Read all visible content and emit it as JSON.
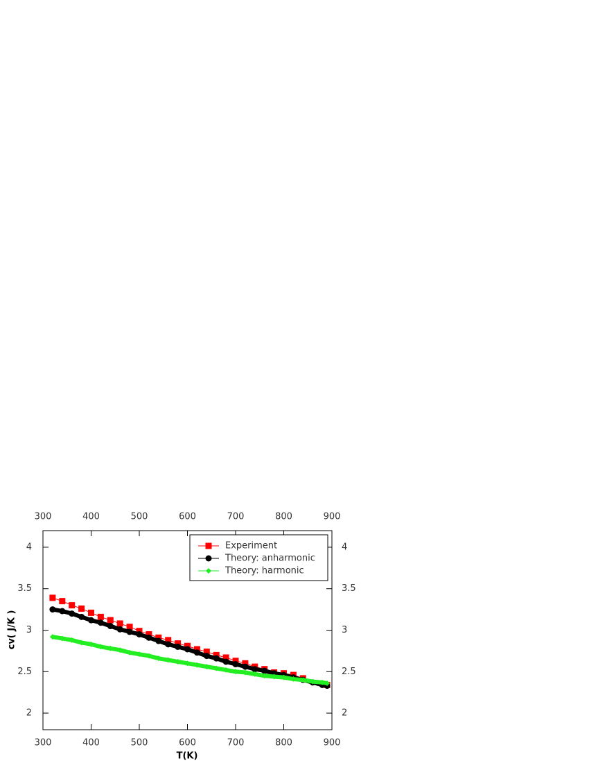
{
  "chart_data": {
    "type": "line",
    "xlabel": "T(K)",
    "ylabel": "cv( J/K )",
    "xlim": [
      300,
      900
    ],
    "xticks": [
      300,
      400,
      500,
      600,
      700,
      800,
      900
    ],
    "ylim": [
      1.8,
      4.2
    ],
    "yticks": [
      2,
      2.5,
      3,
      3.5,
      4
    ],
    "legend": "upper right",
    "series": [
      {
        "name": "Experiment",
        "color": "#ff0000",
        "marker": "square",
        "x": [
          320,
          340,
          360,
          380,
          400,
          420,
          440,
          460,
          480,
          500,
          520,
          540,
          560,
          580,
          600,
          620,
          640,
          660,
          680,
          700,
          720,
          740,
          760,
          780,
          800,
          820,
          840,
          890
        ],
        "values": [
          3.39,
          3.35,
          3.3,
          3.26,
          3.21,
          3.16,
          3.12,
          3.08,
          3.04,
          2.99,
          2.95,
          2.91,
          2.88,
          2.84,
          2.81,
          2.77,
          2.74,
          2.7,
          2.67,
          2.63,
          2.6,
          2.56,
          2.53,
          2.49,
          2.48,
          2.46,
          2.42,
          2.34
        ]
      },
      {
        "name": "Theory: anharmonic",
        "color": "#000000",
        "marker": "circle",
        "x": [
          320,
          340,
          360,
          380,
          400,
          420,
          440,
          460,
          480,
          500,
          520,
          540,
          560,
          580,
          600,
          620,
          640,
          660,
          680,
          700,
          720,
          740,
          760,
          780,
          800,
          820,
          840,
          860,
          880,
          890
        ],
        "values": [
          3.25,
          3.23,
          3.2,
          3.16,
          3.12,
          3.09,
          3.05,
          3.01,
          2.98,
          2.95,
          2.91,
          2.87,
          2.83,
          2.8,
          2.77,
          2.73,
          2.69,
          2.66,
          2.62,
          2.59,
          2.56,
          2.53,
          2.51,
          2.48,
          2.46,
          2.43,
          2.4,
          2.37,
          2.34,
          2.33
        ]
      },
      {
        "name": "Theory: harmonic",
        "color": "#22ee22",
        "marker": "diamond",
        "x": [
          320,
          340,
          360,
          380,
          400,
          420,
          440,
          460,
          480,
          500,
          520,
          540,
          560,
          580,
          600,
          620,
          640,
          660,
          680,
          700,
          720,
          740,
          760,
          780,
          800,
          820,
          840,
          860,
          880,
          890
        ],
        "values": [
          2.92,
          2.9,
          2.88,
          2.85,
          2.83,
          2.8,
          2.78,
          2.76,
          2.73,
          2.71,
          2.69,
          2.66,
          2.64,
          2.62,
          2.6,
          2.58,
          2.56,
          2.54,
          2.52,
          2.5,
          2.49,
          2.47,
          2.45,
          2.44,
          2.43,
          2.41,
          2.4,
          2.38,
          2.37,
          2.36
        ]
      }
    ]
  }
}
